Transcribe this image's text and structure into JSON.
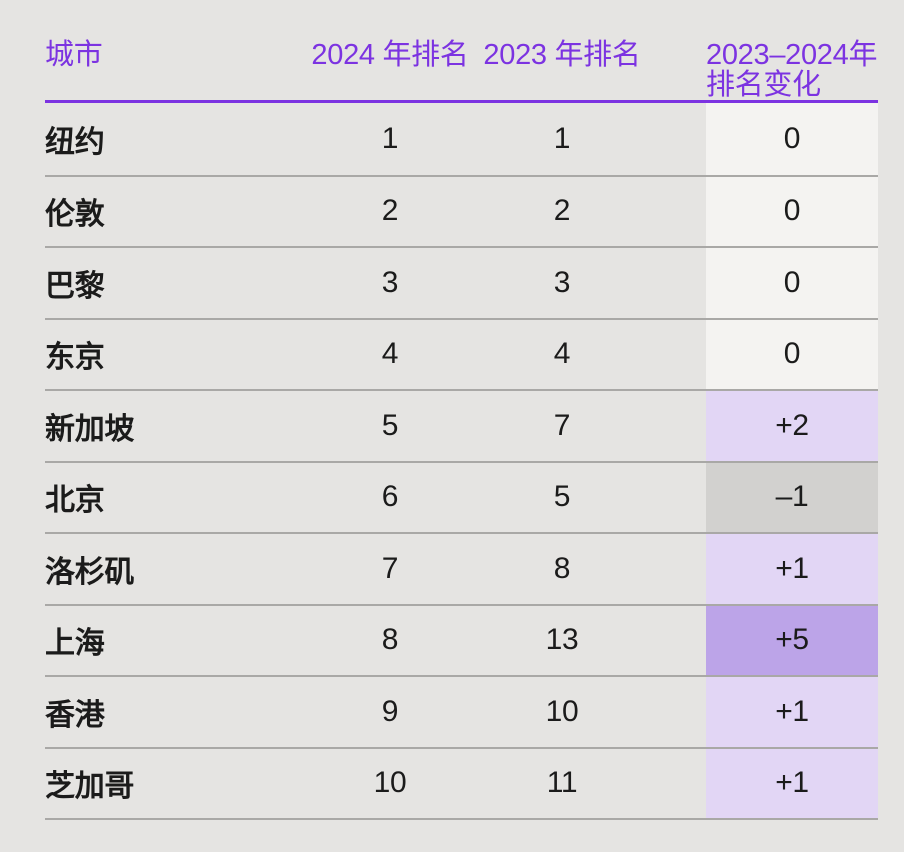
{
  "colors": {
    "accent_purple": "#7c33e1",
    "page_background": "#e5e4e2",
    "separator_line": "#a9a8a6",
    "text_dark": "#1b1b1b",
    "change_cells": {
      "zero": "#f4f3f1",
      "up": "#e2d6f5",
      "up_strong": "#bca4e8",
      "down": "#d2d1cf"
    }
  },
  "chart_data": {
    "type": "table",
    "columns": [
      "城市",
      "2024 年排名",
      "2023 年排名",
      "2023–2024年\n排名变化"
    ],
    "rows": [
      {
        "city": "纽约",
        "rank_2024": "1",
        "rank_2023": "1",
        "change": "0",
        "change_type": "zero"
      },
      {
        "city": "伦敦",
        "rank_2024": "2",
        "rank_2023": "2",
        "change": "0",
        "change_type": "zero"
      },
      {
        "city": "巴黎",
        "rank_2024": "3",
        "rank_2023": "3",
        "change": "0",
        "change_type": "zero"
      },
      {
        "city": "东京",
        "rank_2024": "4",
        "rank_2023": "4",
        "change": "0",
        "change_type": "zero"
      },
      {
        "city": "新加坡",
        "rank_2024": "5",
        "rank_2023": "7",
        "change": "+2",
        "change_type": "up"
      },
      {
        "city": "北京",
        "rank_2024": "6",
        "rank_2023": "5",
        "change": "–1",
        "change_type": "down"
      },
      {
        "city": "洛杉矶",
        "rank_2024": "7",
        "rank_2023": "8",
        "change": "+1",
        "change_type": "up"
      },
      {
        "city": "上海",
        "rank_2024": "8",
        "rank_2023": "13",
        "change": "+5",
        "change_type": "up_strong"
      },
      {
        "city": "香港",
        "rank_2024": "9",
        "rank_2023": "10",
        "change": "+1",
        "change_type": "up"
      },
      {
        "city": "芝加哥",
        "rank_2024": "10",
        "rank_2023": "11",
        "change": "+1",
        "change_type": "up"
      }
    ]
  }
}
